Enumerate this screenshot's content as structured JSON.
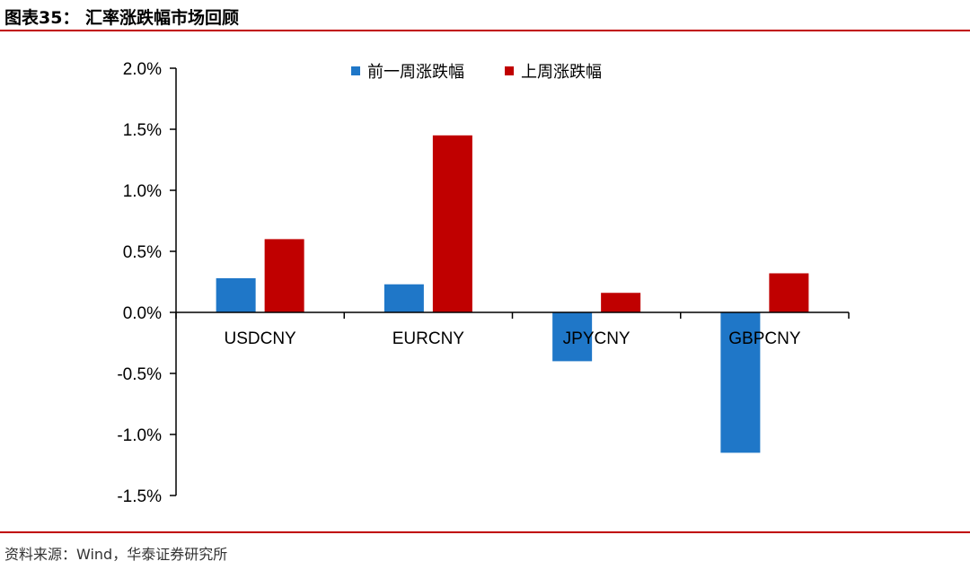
{
  "header": {
    "title": "图表35：  汇率涨跌幅市场回顾"
  },
  "footer": {
    "source": "资料来源：Wind，华泰证券研究所"
  },
  "colors": {
    "accent_rule": "#c00000",
    "series_prev": "#1f77c8",
    "series_last": "#c00000"
  },
  "chart_data": {
    "type": "bar",
    "categories": [
      "USDCNY",
      "EURCNY",
      "JPYCNY",
      "GBPCNY"
    ],
    "series": [
      {
        "name": "前一周涨跌幅",
        "values": [
          0.28,
          0.23,
          -0.4,
          -1.15
        ]
      },
      {
        "name": "上周涨跌幅",
        "values": [
          0.6,
          1.45,
          0.16,
          0.32
        ]
      }
    ],
    "yticks": [
      "2.0%",
      "1.5%",
      "1.0%",
      "0.5%",
      "0.0%",
      "-0.5%",
      "-1.0%",
      "-1.5%"
    ],
    "ylim": [
      -1.5,
      2.0
    ],
    "unit": "%",
    "grid": false,
    "legend": "top-center"
  }
}
